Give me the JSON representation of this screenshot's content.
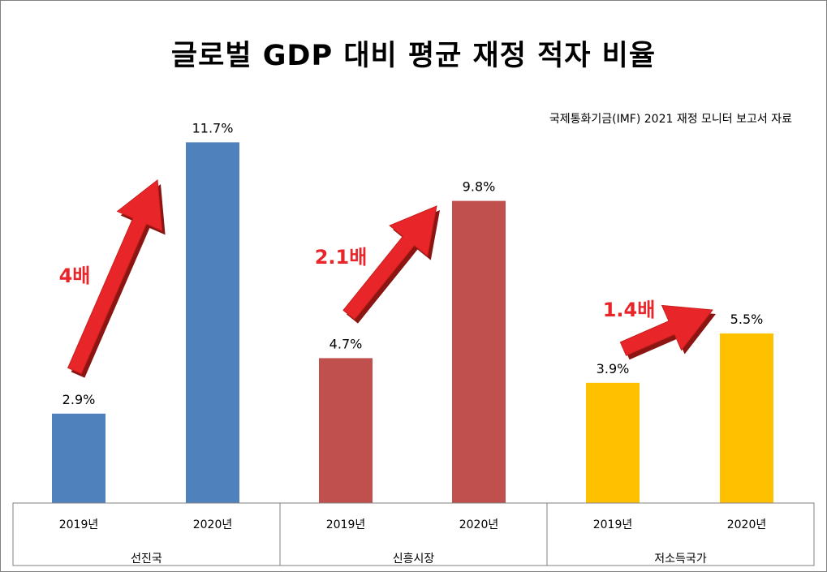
{
  "chart_data": {
    "type": "bar",
    "title": "글로벌 GDP 대비 평균 재정 적자 비율",
    "annotation_source": "국제통화기금(IMF) 2021 재정 모니터 보고서 자료",
    "groups": [
      {
        "name": "선진국",
        "color": "#4F81BD",
        "categories": [
          "2019년",
          "2020년"
        ],
        "values": [
          2.9,
          11.7
        ],
        "labels": [
          "2.9%",
          "11.7%"
        ],
        "multiplier_label": "4배"
      },
      {
        "name": "신흥시장",
        "color": "#C0504D",
        "categories": [
          "2019년",
          "2020년"
        ],
        "values": [
          4.7,
          9.8
        ],
        "labels": [
          "4.7%",
          "9.8%"
        ],
        "multiplier_label": "2.1배"
      },
      {
        "name": "저소득국가",
        "color": "#FFC000",
        "categories": [
          "2019년",
          "2020년"
        ],
        "values": [
          3.9,
          5.5
        ],
        "labels": [
          "3.9%",
          "5.5%"
        ],
        "multiplier_label": "1.4배"
      }
    ],
    "ylim": [
      0,
      15
    ],
    "grid": false,
    "legend": "none",
    "arrow_color": "#E8262A"
  }
}
